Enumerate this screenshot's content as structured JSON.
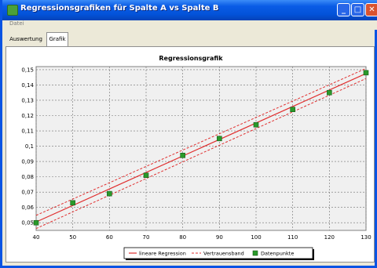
{
  "window": {
    "title": "Regressionsgrafiken für Spalte A vs Spalte B"
  },
  "menu": {
    "items": [
      "Datei"
    ]
  },
  "tabs": [
    {
      "label": "Auswertung",
      "active": false
    },
    {
      "label": "Grafik",
      "active": true
    }
  ],
  "chart_data": {
    "type": "scatter",
    "title": "Regressionsgrafik",
    "xlabel": "",
    "ylabel": "",
    "xlim": [
      40,
      130
    ],
    "ylim": [
      0.045,
      0.152
    ],
    "x_ticks": [
      40,
      50,
      60,
      70,
      80,
      90,
      100,
      110,
      120,
      130
    ],
    "y_ticks": [
      0.05,
      0.06,
      0.07,
      0.08,
      0.09,
      0.1,
      0.11,
      0.12,
      0.13,
      0.14,
      0.15
    ],
    "y_tick_labels": [
      "0,05",
      "0,06",
      "0,07",
      "0,08",
      "0,09",
      "0,1",
      "0,11",
      "0,12",
      "0,13",
      "0,14",
      "0,15"
    ],
    "grid": true,
    "legend_position": "bottom",
    "series": [
      {
        "name": "lineare Regression",
        "style": "solid",
        "color": "#e03030",
        "x": [
          40,
          130
        ],
        "y": [
          0.0505,
          0.1475
        ]
      },
      {
        "name": "Vertrauensband",
        "style": "dashed",
        "color": "#e03030",
        "x": [
          40,
          130
        ],
        "y_upper": [
          0.0548,
          0.1508
        ],
        "y_lower": [
          0.0462,
          0.1442
        ]
      },
      {
        "name": "Datenpunkte",
        "style": "marker",
        "color": "#2a9a2a",
        "x": [
          40,
          50,
          60,
          70,
          80,
          90,
          100,
          110,
          120,
          130
        ],
        "y": [
          0.05,
          0.063,
          0.069,
          0.081,
          0.094,
          0.105,
          0.114,
          0.124,
          0.135,
          0.148
        ]
      }
    ]
  }
}
